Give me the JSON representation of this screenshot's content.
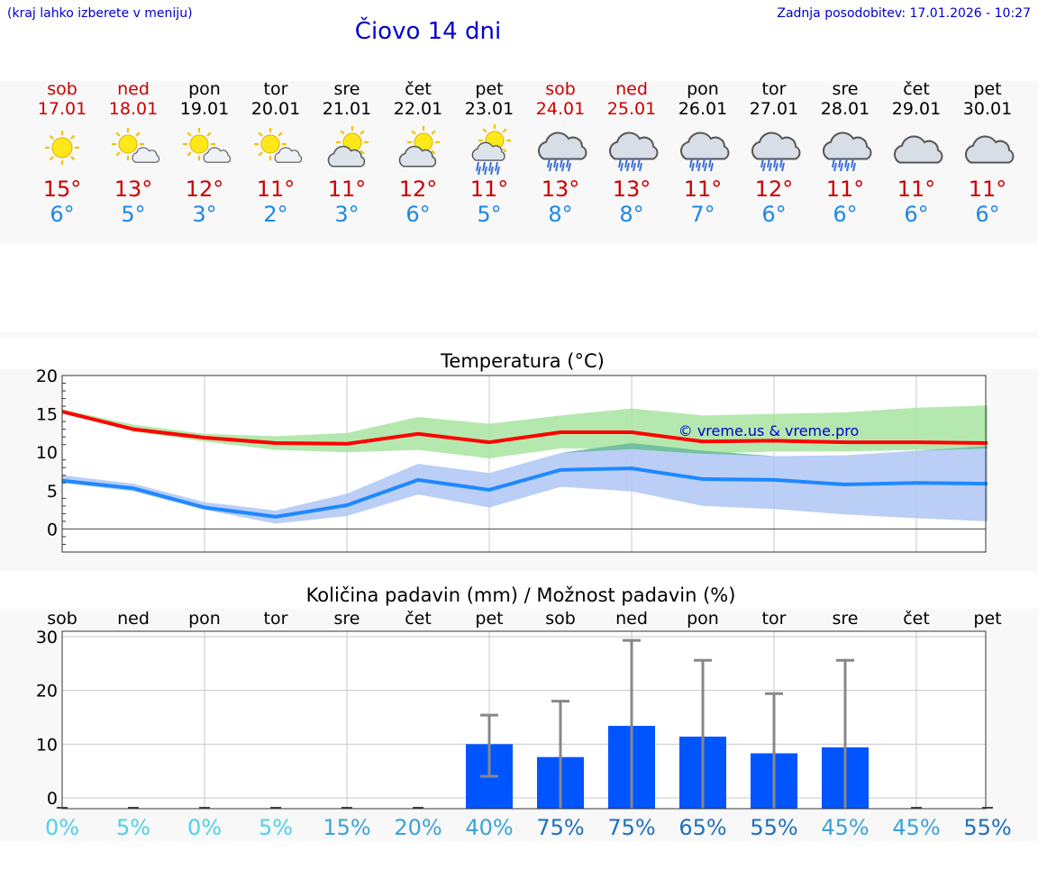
{
  "header": {
    "hint": "(kraj lahko izberete v meniju)",
    "title": "Čiovo 14 dni",
    "updated": "Zadnja posodobitev: 17.01.2026 - 10:27"
  },
  "days": [
    {
      "name": "sob",
      "date": "17.01",
      "weekend": true,
      "icon": "sun-icon",
      "max": "15°",
      "min": "6°"
    },
    {
      "name": "ned",
      "date": "18.01",
      "weekend": true,
      "icon": "sun-cloud-icon",
      "max": "13°",
      "min": "5°"
    },
    {
      "name": "pon",
      "date": "19.01",
      "weekend": false,
      "icon": "sun-cloud-icon",
      "max": "12°",
      "min": "3°"
    },
    {
      "name": "tor",
      "date": "20.01",
      "weekend": false,
      "icon": "sun-cloud-icon",
      "max": "11°",
      "min": "2°"
    },
    {
      "name": "sre",
      "date": "21.01",
      "weekend": false,
      "icon": "cloud-sun-icon",
      "max": "11°",
      "min": "3°"
    },
    {
      "name": "čet",
      "date": "22.01",
      "weekend": false,
      "icon": "cloud-sun-icon",
      "max": "12°",
      "min": "6°"
    },
    {
      "name": "pet",
      "date": "23.01",
      "weekend": false,
      "icon": "sun-cloud-rain-icon",
      "max": "11°",
      "min": "5°"
    },
    {
      "name": "sob",
      "date": "24.01",
      "weekend": true,
      "icon": "cloud-rain-icon",
      "max": "13°",
      "min": "8°"
    },
    {
      "name": "ned",
      "date": "25.01",
      "weekend": true,
      "icon": "cloud-rain-icon",
      "max": "13°",
      "min": "8°"
    },
    {
      "name": "pon",
      "date": "26.01",
      "weekend": false,
      "icon": "cloud-rain-icon",
      "max": "11°",
      "min": "7°"
    },
    {
      "name": "tor",
      "date": "27.01",
      "weekend": false,
      "icon": "cloud-rain-icon",
      "max": "12°",
      "min": "6°"
    },
    {
      "name": "sre",
      "date": "28.01",
      "weekend": false,
      "icon": "cloud-rain-icon",
      "max": "11°",
      "min": "6°"
    },
    {
      "name": "čet",
      "date": "29.01",
      "weekend": false,
      "icon": "cloud-icon",
      "max": "11°",
      "min": "6°"
    },
    {
      "name": "pet",
      "date": "30.01",
      "weekend": false,
      "icon": "cloud-icon",
      "max": "11°",
      "min": "6°"
    }
  ],
  "colors": {
    "max_line": "#ff0000",
    "min_line": "#1e88ff",
    "max_band": "#a8e4a0",
    "min_band": "#aec6f4",
    "bar": "#0055ff",
    "error_bar": "#888888",
    "text_blue": "#0000cc",
    "weekend": "#cc0000"
  },
  "chart_data": [
    {
      "type": "line",
      "title": "Temperatura (°C)",
      "watermark": "© vreme.us & vreme.pro",
      "categories": [
        "17.01",
        "18.01",
        "19.01",
        "20.01",
        "21.01",
        "22.01",
        "23.01",
        "24.01",
        "25.01",
        "26.01",
        "27.01",
        "28.01",
        "29.01",
        "30.01"
      ],
      "ylim": [
        -3,
        20
      ],
      "yticks": [
        0,
        5,
        10,
        15,
        20
      ],
      "grid": true,
      "series": [
        {
          "name": "max",
          "values": [
            15.3,
            13.0,
            11.9,
            11.2,
            11.1,
            12.4,
            11.3,
            12.6,
            12.6,
            11.4,
            11.5,
            11.3,
            11.3,
            11.2
          ],
          "band_low": [
            15.2,
            12.7,
            11.4,
            10.3,
            10.0,
            10.3,
            9.2,
            10.5,
            10.4,
            9.8,
            10.1,
            10.1,
            10.3,
            10.5
          ],
          "band_high": [
            15.6,
            13.6,
            12.4,
            12.1,
            12.5,
            14.6,
            13.7,
            14.8,
            15.7,
            14.8,
            15.0,
            15.2,
            15.8,
            16.1
          ]
        },
        {
          "name": "min",
          "values": [
            6.3,
            5.3,
            2.8,
            1.6,
            3.1,
            6.4,
            5.1,
            7.7,
            7.9,
            6.5,
            6.4,
            5.8,
            6.0,
            5.9
          ],
          "band_low": [
            6.0,
            4.9,
            2.5,
            0.7,
            1.7,
            4.5,
            2.8,
            5.5,
            4.9,
            3.0,
            2.6,
            1.9,
            1.4,
            1.0
          ],
          "band_high": [
            7.0,
            5.9,
            3.5,
            2.4,
            4.6,
            8.5,
            7.3,
            9.9,
            11.2,
            10.2,
            9.5,
            9.6,
            10.2,
            10.8
          ]
        }
      ]
    },
    {
      "type": "bar",
      "title": "Količina padavin (mm) / Možnost padavin (%)",
      "categories": [
        "sob",
        "ned",
        "pon",
        "tor",
        "sre",
        "čet",
        "pet",
        "sob",
        "ned",
        "pon",
        "tor",
        "sre",
        "čet",
        "pet"
      ],
      "ylim": [
        -2,
        31
      ],
      "yticks": [
        0,
        10,
        20,
        30
      ],
      "series": [
        {
          "name": "padavine",
          "values": [
            0,
            0,
            0,
            0,
            0,
            0,
            10,
            7.6,
            13.4,
            11.4,
            8.3,
            9.4,
            0,
            0
          ],
          "err_low": [
            0,
            0,
            0,
            0,
            0,
            0,
            4,
            -2,
            -2,
            -2,
            -2,
            -2,
            0,
            0
          ],
          "err_high": [
            0,
            0,
            0,
            0,
            0,
            0,
            15.4,
            18,
            29.3,
            25.6,
            19.4,
            25.6,
            0,
            0
          ]
        }
      ],
      "probability": [
        "0%",
        "5%",
        "0%",
        "5%",
        "15%",
        "20%",
        "40%",
        "75%",
        "75%",
        "65%",
        "55%",
        "45%",
        "45%",
        "55%"
      ],
      "probability_colors": [
        "#4fd0e8",
        "#4fd0e8",
        "#4fd0e8",
        "#4fd0e8",
        "#3aa3d9",
        "#3aa3d9",
        "#3aa3d9",
        "#1f6fbf",
        "#1f6fbf",
        "#1f6fbf",
        "#1f6fbf",
        "#3aa3d9",
        "#3aa3d9",
        "#1f6fbf"
      ]
    }
  ]
}
